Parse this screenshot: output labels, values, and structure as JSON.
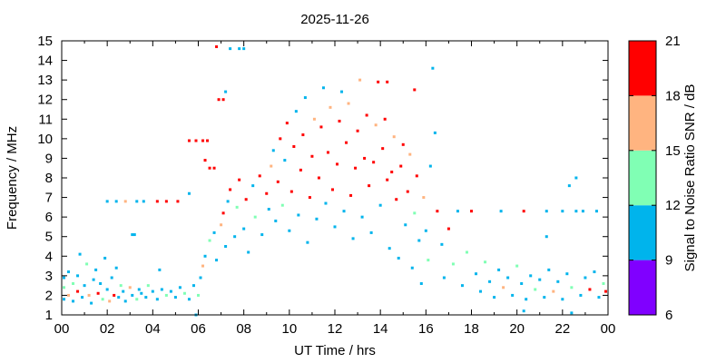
{
  "chart_data": {
    "type": "scatter",
    "title": "2025-11-26",
    "xlabel": "UT Time / hrs",
    "ylabel": "Frequency / MHz",
    "colorbar_label": "Signal to Noise Ratio SNR / dB",
    "xlim": [
      0,
      24
    ],
    "ylim": [
      1,
      15
    ],
    "x_ticks": [
      "00",
      "02",
      "04",
      "06",
      "08",
      "10",
      "12",
      "14",
      "16",
      "18",
      "20",
      "22",
      "00"
    ],
    "y_ticks": [
      "1",
      "2",
      "3",
      "4",
      "5",
      "6",
      "7",
      "8",
      "9",
      "10",
      "11",
      "12",
      "13",
      "14",
      "15"
    ],
    "colorbar_ticks": [
      "6",
      "9",
      "12",
      "15",
      "18",
      "21"
    ],
    "colorbar_bands": [
      {
        "from": 6,
        "to": 9,
        "color": "#8000ff"
      },
      {
        "from": 9,
        "to": 12,
        "color": "#00b4ec"
      },
      {
        "from": 12,
        "to": 15,
        "color": "#80ffb4"
      },
      {
        "from": 15,
        "to": 18,
        "color": "#ffb480"
      },
      {
        "from": 18,
        "to": 21,
        "color": "#ff0000"
      }
    ],
    "grid": false,
    "legend": "colorbar-right",
    "note_on_points": "dense ionogram-style dot cloud; representative points below",
    "points": [
      [
        0.1,
        1.8,
        10
      ],
      [
        0.1,
        2.4,
        13
      ],
      [
        0.1,
        2.9,
        10
      ],
      [
        0.3,
        2.0,
        16
      ],
      [
        0.3,
        3.2,
        10
      ],
      [
        0.5,
        1.7,
        10
      ],
      [
        0.5,
        2.6,
        13
      ],
      [
        0.7,
        2.2,
        19
      ],
      [
        0.7,
        3.0,
        10
      ],
      [
        0.8,
        4.1,
        10
      ],
      [
        0.9,
        1.9,
        10
      ],
      [
        1.0,
        2.5,
        10
      ],
      [
        1.1,
        3.6,
        13
      ],
      [
        1.2,
        2.0,
        16
      ],
      [
        1.3,
        1.6,
        10
      ],
      [
        1.4,
        2.8,
        10
      ],
      [
        1.5,
        3.3,
        10
      ],
      [
        1.6,
        2.1,
        19
      ],
      [
        1.7,
        2.6,
        10
      ],
      [
        1.8,
        1.8,
        13
      ],
      [
        1.9,
        3.9,
        10
      ],
      [
        2.0,
        2.3,
        10
      ],
      [
        2.1,
        1.7,
        16
      ],
      [
        2.2,
        2.9,
        10
      ],
      [
        2.3,
        2.0,
        19
      ],
      [
        2.4,
        3.4,
        10
      ],
      [
        2.5,
        1.9,
        10
      ],
      [
        2.6,
        2.5,
        13
      ],
      [
        2.7,
        2.2,
        10
      ],
      [
        2.8,
        1.7,
        10
      ],
      [
        3.0,
        2.4,
        16
      ],
      [
        3.1,
        2.0,
        10
      ],
      [
        3.2,
        5.1,
        10
      ],
      [
        3.3,
        1.8,
        13
      ],
      [
        3.4,
        2.3,
        10
      ],
      [
        3.5,
        2.1,
        10
      ],
      [
        3.7,
        1.9,
        10
      ],
      [
        3.8,
        2.5,
        13
      ],
      [
        4.0,
        2.2,
        10
      ],
      [
        4.2,
        1.8,
        10
      ],
      [
        4.4,
        2.3,
        10
      ],
      [
        4.6,
        2.0,
        13
      ],
      [
        4.8,
        2.2,
        10
      ],
      [
        5.0,
        1.9,
        10
      ],
      [
        5.2,
        2.4,
        10
      ],
      [
        5.4,
        2.1,
        13
      ],
      [
        5.6,
        1.8,
        10
      ],
      [
        5.8,
        2.5,
        10
      ],
      [
        6.0,
        2.0,
        13
      ],
      [
        6.1,
        2.9,
        10
      ],
      [
        6.2,
        3.5,
        16
      ],
      [
        6.3,
        4.0,
        10
      ],
      [
        6.5,
        4.8,
        13
      ],
      [
        6.7,
        5.2,
        10
      ],
      [
        6.8,
        3.8,
        10
      ],
      [
        7.0,
        5.6,
        16
      ],
      [
        7.1,
        6.2,
        19
      ],
      [
        7.2,
        4.5,
        10
      ],
      [
        7.3,
        6.8,
        10
      ],
      [
        7.4,
        7.4,
        19
      ],
      [
        7.6,
        5.0,
        10
      ],
      [
        7.7,
        6.5,
        13
      ],
      [
        7.8,
        7.9,
        19
      ],
      [
        8.0,
        5.4,
        10
      ],
      [
        8.1,
        6.9,
        19
      ],
      [
        8.2,
        4.2,
        10
      ],
      [
        8.4,
        7.6,
        10
      ],
      [
        8.5,
        6.0,
        13
      ],
      [
        8.7,
        8.1,
        19
      ],
      [
        8.8,
        5.1,
        10
      ],
      [
        9.0,
        7.2,
        19
      ],
      [
        9.1,
        6.4,
        10
      ],
      [
        9.2,
        8.6,
        16
      ],
      [
        9.3,
        9.4,
        10
      ],
      [
        9.4,
        5.8,
        10
      ],
      [
        9.5,
        7.8,
        19
      ],
      [
        9.6,
        10.0,
        19
      ],
      [
        9.7,
        6.6,
        13
      ],
      [
        9.8,
        8.9,
        10
      ],
      [
        9.9,
        10.8,
        19
      ],
      [
        10.0,
        5.3,
        10
      ],
      [
        10.1,
        7.3,
        19
      ],
      [
        10.2,
        9.6,
        19
      ],
      [
        10.3,
        11.4,
        10
      ],
      [
        10.4,
        6.1,
        10
      ],
      [
        10.5,
        8.4,
        19
      ],
      [
        10.6,
        10.2,
        19
      ],
      [
        10.7,
        12.1,
        10
      ],
      [
        10.8,
        4.7,
        10
      ],
      [
        10.9,
        7.0,
        19
      ],
      [
        11.0,
        9.1,
        19
      ],
      [
        11.1,
        11.0,
        16
      ],
      [
        11.2,
        5.9,
        10
      ],
      [
        11.3,
        8.0,
        19
      ],
      [
        11.4,
        10.6,
        19
      ],
      [
        11.5,
        12.6,
        10
      ],
      [
        11.6,
        6.7,
        10
      ],
      [
        11.7,
        9.3,
        19
      ],
      [
        11.8,
        11.6,
        16
      ],
      [
        11.9,
        7.4,
        19
      ],
      [
        12.0,
        5.5,
        10
      ],
      [
        12.1,
        8.7,
        19
      ],
      [
        12.2,
        10.9,
        19
      ],
      [
        12.3,
        12.4,
        10
      ],
      [
        12.4,
        6.3,
        10
      ],
      [
        12.5,
        9.8,
        19
      ],
      [
        12.6,
        11.8,
        16
      ],
      [
        12.7,
        7.1,
        19
      ],
      [
        12.8,
        4.9,
        10
      ],
      [
        12.9,
        8.5,
        19
      ],
      [
        13.0,
        10.4,
        19
      ],
      [
        13.1,
        13.0,
        16
      ],
      [
        13.2,
        6.0,
        10
      ],
      [
        13.3,
        9.0,
        19
      ],
      [
        13.4,
        11.2,
        19
      ],
      [
        13.5,
        7.6,
        19
      ],
      [
        13.6,
        5.2,
        10
      ],
      [
        13.7,
        8.8,
        19
      ],
      [
        13.8,
        10.7,
        16
      ],
      [
        13.9,
        12.9,
        19
      ],
      [
        14.0,
        6.6,
        10
      ],
      [
        14.1,
        9.5,
        19
      ],
      [
        14.2,
        11.0,
        19
      ],
      [
        14.3,
        7.9,
        19
      ],
      [
        14.4,
        4.4,
        10
      ],
      [
        14.5,
        8.3,
        19
      ],
      [
        14.6,
        10.1,
        16
      ],
      [
        14.7,
        6.9,
        19
      ],
      [
        14.8,
        3.9,
        10
      ],
      [
        14.9,
        8.6,
        19
      ],
      [
        15.0,
        9.7,
        19
      ],
      [
        15.1,
        5.6,
        10
      ],
      [
        15.2,
        7.3,
        19
      ],
      [
        15.3,
        9.2,
        16
      ],
      [
        15.4,
        3.4,
        10
      ],
      [
        15.5,
        6.2,
        13
      ],
      [
        15.6,
        8.1,
        19
      ],
      [
        15.7,
        4.8,
        10
      ],
      [
        15.8,
        2.6,
        10
      ],
      [
        15.9,
        7.0,
        16
      ],
      [
        16.0,
        5.3,
        10
      ],
      [
        16.1,
        3.8,
        13
      ],
      [
        16.2,
        8.6,
        10
      ],
      [
        16.3,
        13.6,
        10
      ],
      [
        16.4,
        10.3,
        10
      ],
      [
        16.5,
        6.3,
        19
      ],
      [
        16.7,
        4.6,
        10
      ],
      [
        16.8,
        2.9,
        10
      ],
      [
        17.0,
        5.4,
        19
      ],
      [
        17.2,
        3.6,
        13
      ],
      [
        17.4,
        6.3,
        10
      ],
      [
        17.6,
        2.5,
        10
      ],
      [
        17.8,
        4.2,
        13
      ],
      [
        18.0,
        6.3,
        19
      ],
      [
        18.2,
        3.1,
        10
      ],
      [
        18.4,
        2.2,
        10
      ],
      [
        18.6,
        3.7,
        13
      ],
      [
        18.8,
        2.7,
        10
      ],
      [
        19.0,
        1.9,
        10
      ],
      [
        19.2,
        3.3,
        10
      ],
      [
        19.4,
        2.4,
        16
      ],
      [
        19.6,
        2.9,
        10
      ],
      [
        19.8,
        2.0,
        10
      ],
      [
        20.0,
        3.5,
        13
      ],
      [
        20.2,
        2.6,
        10
      ],
      [
        20.4,
        1.8,
        10
      ],
      [
        20.6,
        3.0,
        10
      ],
      [
        20.8,
        2.3,
        13
      ],
      [
        21.0,
        2.8,
        10
      ],
      [
        21.2,
        1.9,
        10
      ],
      [
        21.4,
        3.3,
        10
      ],
      [
        21.6,
        2.2,
        16
      ],
      [
        21.8,
        2.7,
        10
      ],
      [
        22.0,
        1.8,
        10
      ],
      [
        22.2,
        3.1,
        10
      ],
      [
        22.4,
        2.4,
        13
      ],
      [
        22.6,
        6.3,
        10
      ],
      [
        22.8,
        2.0,
        10
      ],
      [
        23.0,
        2.9,
        10
      ],
      [
        23.2,
        2.3,
        19
      ],
      [
        23.4,
        3.2,
        10
      ],
      [
        23.6,
        1.9,
        10
      ],
      [
        23.8,
        2.6,
        13
      ],
      [
        23.9,
        2.2,
        19
      ]
    ],
    "isolated_points": [
      [
        6.8,
        14.7,
        19
      ],
      [
        7.4,
        14.6,
        10
      ],
      [
        7.8,
        14.6,
        10
      ],
      [
        8.0,
        14.6,
        10
      ],
      [
        7.2,
        12.4,
        10
      ],
      [
        6.9,
        12.0,
        19
      ],
      [
        7.1,
        12.0,
        19
      ],
      [
        15.5,
        12.5,
        19
      ],
      [
        14.3,
        12.9,
        19
      ],
      [
        5.6,
        9.9,
        19
      ],
      [
        5.9,
        9.9,
        19
      ],
      [
        6.2,
        9.9,
        19
      ],
      [
        6.4,
        9.9,
        19
      ],
      [
        6.3,
        8.9,
        19
      ],
      [
        6.5,
        8.5,
        19
      ],
      [
        6.7,
        8.5,
        19
      ],
      [
        2.0,
        6.8,
        10
      ],
      [
        2.4,
        6.8,
        10
      ],
      [
        2.8,
        6.8,
        16
      ],
      [
        3.3,
        6.8,
        10
      ],
      [
        3.6,
        6.8,
        10
      ],
      [
        4.2,
        6.8,
        19
      ],
      [
        4.6,
        6.8,
        19
      ],
      [
        5.1,
        6.8,
        19
      ],
      [
        5.6,
        7.2,
        10
      ],
      [
        19.3,
        6.3,
        10
      ],
      [
        20.3,
        6.3,
        19
      ],
      [
        21.3,
        6.3,
        10
      ],
      [
        22.0,
        6.3,
        10
      ],
      [
        22.6,
        8.0,
        10
      ],
      [
        22.9,
        6.3,
        10
      ],
      [
        23.5,
        6.3,
        10
      ],
      [
        22.3,
        7.6,
        10
      ],
      [
        21.3,
        5.0,
        10
      ],
      [
        22.4,
        1.1,
        10
      ],
      [
        5.9,
        1.0,
        10
      ],
      [
        20.3,
        1.2,
        10
      ],
      [
        4.3,
        3.3,
        10
      ],
      [
        3.1,
        5.1,
        10
      ]
    ]
  },
  "colors": {
    "axis": "#000000",
    "background": "#ffffff"
  }
}
